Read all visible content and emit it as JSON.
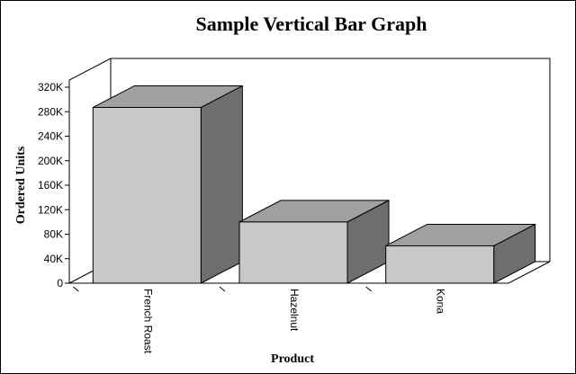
{
  "chart_data": {
    "type": "bar",
    "title": "Sample Vertical Bar Graph",
    "xlabel": "Product",
    "ylabel": "Ordered Units",
    "categories": [
      "French Roast",
      "Hazelnut",
      "Kona"
    ],
    "values": [
      287000,
      100000,
      61000
    ],
    "ylim": [
      0,
      320000
    ],
    "yticks": [
      0,
      40000,
      80000,
      120000,
      160000,
      200000,
      240000,
      280000,
      320000
    ],
    "ytick_labels": [
      "0",
      "40K",
      "80K",
      "120K",
      "160K",
      "200K",
      "240K",
      "280K",
      "320K"
    ],
    "grid": false,
    "legend": "none",
    "style": "3d"
  },
  "colors": {
    "bar_front": "#c8c8c8",
    "bar_top": "#a0a0a0",
    "bar_side": "#6e6e6e",
    "axis": "#000000"
  }
}
